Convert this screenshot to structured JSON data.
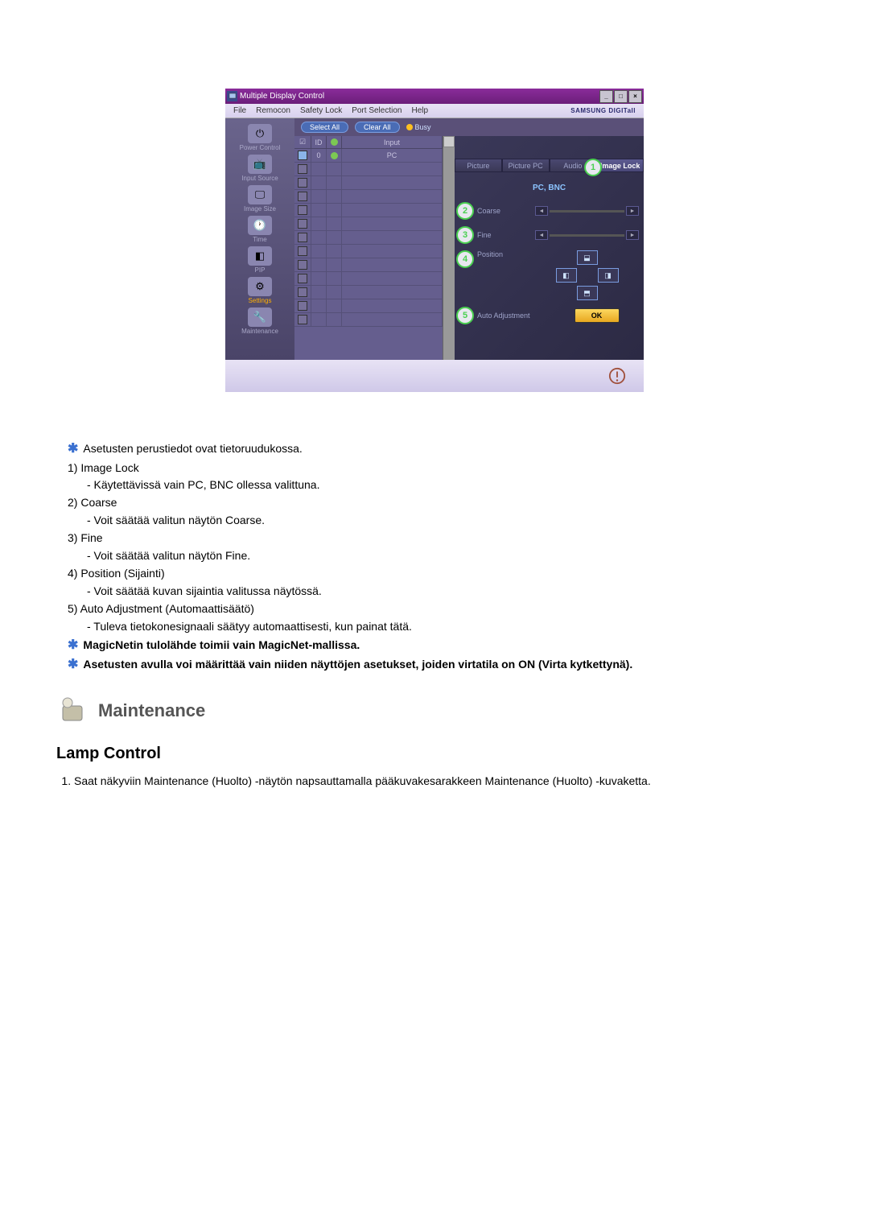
{
  "window": {
    "title": "Multiple Display Control",
    "menu": [
      "File",
      "Remocon",
      "Safety Lock",
      "Port Selection",
      "Help"
    ],
    "brand": "SAMSUNG DIGITall",
    "select_all": "Select All",
    "clear_all": "Clear All",
    "busy": "Busy",
    "grid_head": {
      "c2": "ID",
      "c4": "Input"
    },
    "rows": [
      {
        "checked": true,
        "id": "0",
        "status": "green",
        "input": "PC"
      },
      {
        "checked": false
      },
      {
        "checked": false
      },
      {
        "checked": false
      },
      {
        "checked": false
      },
      {
        "checked": false
      },
      {
        "checked": false
      },
      {
        "checked": false
      },
      {
        "checked": false
      },
      {
        "checked": false
      },
      {
        "checked": false
      },
      {
        "checked": false
      },
      {
        "checked": false
      }
    ]
  },
  "sidebar": [
    {
      "label": "Power Control",
      "glyph": "⏻",
      "active": false
    },
    {
      "label": "Input Source",
      "glyph": "📺",
      "active": false
    },
    {
      "label": "Image Size",
      "glyph": "🖵",
      "active": false
    },
    {
      "label": "Time",
      "glyph": "🕐",
      "active": false
    },
    {
      "label": "PIP",
      "glyph": "◧",
      "active": false
    },
    {
      "label": "Settings",
      "glyph": "⚙",
      "active": true
    },
    {
      "label": "Maintenance",
      "glyph": "🔧",
      "active": false
    }
  ],
  "panel": {
    "tabs": [
      "Picture",
      "Picture PC",
      "Audio",
      "Image Lock"
    ],
    "active_tab": 3,
    "mode": "PC, BNC",
    "rows": {
      "coarse": {
        "num": "2",
        "label": "Coarse"
      },
      "fine": {
        "num": "3",
        "label": "Fine"
      },
      "position": {
        "num": "4",
        "label": "Position"
      },
      "auto": {
        "num": "5",
        "label": "Auto Adjustment",
        "ok": "OK"
      }
    },
    "topright_num": "1"
  },
  "notes": {
    "intro": "Asetusten perustiedot ovat tietoruudukossa.",
    "items": [
      {
        "n": "1)",
        "t": "Image Lock",
        "d": "- Käytettävissä vain PC, BNC ollessa valittuna."
      },
      {
        "n": "2)",
        "t": "Coarse",
        "d": "- Voit säätää valitun näytön Coarse."
      },
      {
        "n": "3)",
        "t": "Fine",
        "d": "- Voit säätää valitun näytön Fine."
      },
      {
        "n": "4)",
        "t": "Position (Sijainti)",
        "d": "- Voit säätää kuvan sijaintia valitussa näytössä."
      },
      {
        "n": "5)",
        "t": "Auto Adjustment (Automaattisäätö)",
        "d": "- Tuleva tietokonesignaali säätyy automaattisesti, kun painat tätä."
      }
    ],
    "b1": "MagicNetin tulolähde toimii vain MagicNet-mallissa.",
    "b2": "Asetusten avulla voi määrittää vain niiden näyttöjen asetukset, joiden virtatila on ON (Virta kytkettynä)."
  },
  "section": {
    "title": "Maintenance"
  },
  "sub": {
    "title": "Lamp Control",
    "line": "Saat näkyviin Maintenance (Huolto) -näytön napsauttamalla pääkuvakesarakkeen Maintenance (Huolto) -kuvaketta."
  }
}
